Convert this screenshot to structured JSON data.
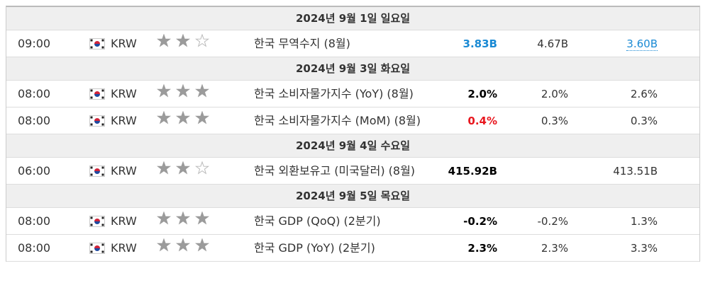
{
  "days": [
    {
      "date": "2024년 9월 1일 일요일",
      "events": [
        {
          "time": "09:00",
          "currency": "KRW",
          "importance": 2,
          "event": "한국 무역수지 (8월)",
          "actual": "3.83B",
          "actual_color": "#1a8ad4",
          "forecast": "4.67B",
          "previous": "3.60B",
          "previous_color": "#1a8ad4"
        }
      ]
    },
    {
      "date": "2024년 9월 3일 화요일",
      "events": [
        {
          "time": "08:00",
          "currency": "KRW",
          "importance": 3,
          "event": "한국 소비자물가지수 (YoY) (8월)",
          "actual": "2.0%",
          "actual_color": "#000000",
          "forecast": "2.0%",
          "previous": "2.6%"
        },
        {
          "time": "08:00",
          "currency": "KRW",
          "importance": 3,
          "event": "한국 소비자물가지수 (MoM) (8월)",
          "actual": "0.4%",
          "actual_color": "#e8171f",
          "forecast": "0.3%",
          "previous": "0.3%"
        }
      ]
    },
    {
      "date": "2024년 9월 4일 수요일",
      "events": [
        {
          "time": "06:00",
          "currency": "KRW",
          "importance": 2,
          "event": "한국 외환보유고 (미국달러) (8월)",
          "actual": "415.92B",
          "actual_color": "#000000",
          "forecast": null,
          "previous": "413.51B"
        }
      ]
    },
    {
      "date": "2024년 9월 5일 목요일",
      "events": [
        {
          "time": "08:00",
          "currency": "KRW",
          "importance": 3,
          "event": "한국 GDP (QoQ) (2분기)",
          "actual": "-0.2%",
          "actual_color": "#000000",
          "forecast": "-0.2%",
          "previous": "1.3%"
        },
        {
          "time": "08:00",
          "currency": "KRW",
          "importance": 3,
          "event": "한국 GDP (YoY) (2분기)",
          "actual": "2.3%",
          "actual_color": "#000000",
          "forecast": "2.3%",
          "previous": "3.3%"
        }
      ]
    }
  ]
}
